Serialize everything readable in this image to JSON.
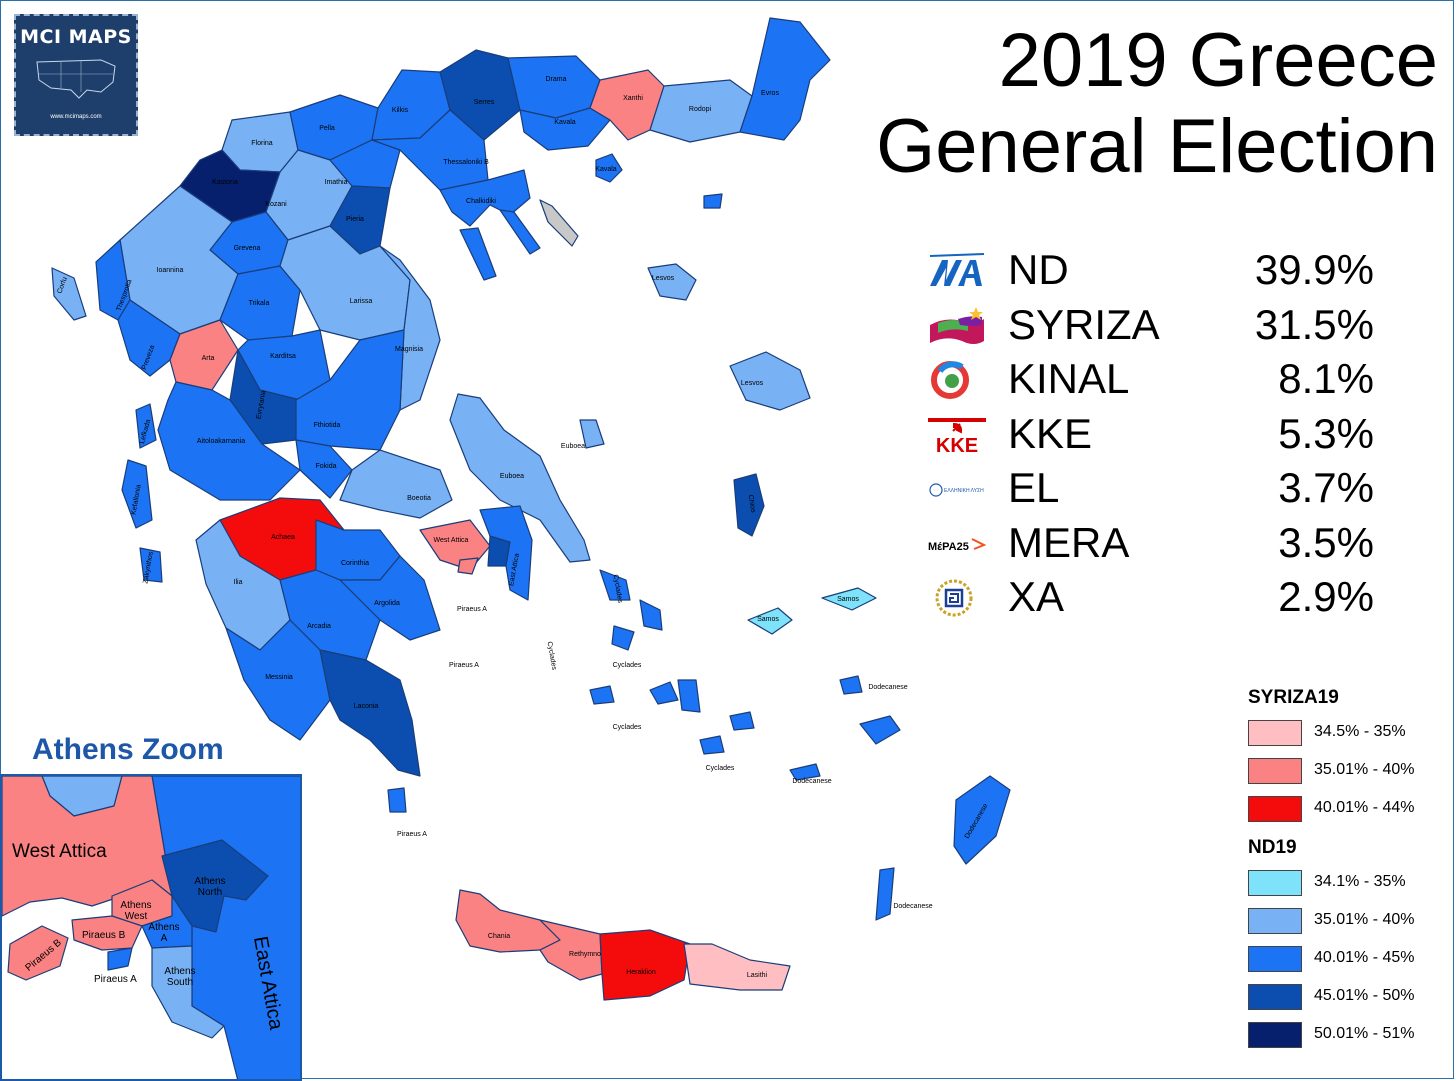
{
  "logo": {
    "title": "MCI MAPS",
    "url": "www.mcimaps.com"
  },
  "title": {
    "line1": "2019 Greece",
    "line2": "General Election"
  },
  "parties": [
    {
      "icon": "nd-logo-icon",
      "name": "ND",
      "pct": "39.9%"
    },
    {
      "icon": "syriza-flag-icon",
      "name": "SYRIZA",
      "pct": "31.5%"
    },
    {
      "icon": "kinal-logo-icon",
      "name": "KINAL",
      "pct": "8.1%"
    },
    {
      "icon": "kke-logo-icon",
      "name": "KKE",
      "pct": "5.3%"
    },
    {
      "icon": "el-logo-icon",
      "name": "EL",
      "pct": "3.7%"
    },
    {
      "icon": "mera-logo-icon",
      "name": "MERA",
      "pct": "3.5%"
    },
    {
      "icon": "xa-logo-icon",
      "name": "XA",
      "pct": "2.9%"
    }
  ],
  "party_logo_text": {
    "kke": "KKE",
    "el": "ΕΛΛΗΝΙΚΗ ΛΥΣΗ",
    "mera": "ΜέΡΑ25"
  },
  "legend": {
    "syriza": {
      "title": "SYRIZA19",
      "items": [
        {
          "label": "34.5% - 35%",
          "color": "#ffbec2"
        },
        {
          "label": "35.01% - 40%",
          "color": "#fa8282"
        },
        {
          "label": "40.01% - 44%",
          "color": "#f40c0c"
        }
      ]
    },
    "nd": {
      "title": "ND19",
      "items": [
        {
          "label": "34.1% - 35%",
          "color": "#7de2fa"
        },
        {
          "label": "35.01% - 40%",
          "color": "#78b2f4"
        },
        {
          "label": "40.01% - 45%",
          "color": "#1c74f4"
        },
        {
          "label": "45.01% - 50%",
          "color": "#0b4eb0"
        },
        {
          "label": "50.01% - 51%",
          "color": "#07206e"
        }
      ]
    }
  },
  "colors": {
    "no_data": "#c8c8c8",
    "border": "#1a3d7a",
    "accent": "#1c57a8"
  },
  "regions": [
    {
      "name": "Florina",
      "winner": "ND",
      "bracket": "40.01% - 45%"
    },
    {
      "name": "Pella",
      "winner": "ND",
      "bracket": "40.01% - 45%"
    },
    {
      "name": "Kilkis",
      "winner": "ND",
      "bracket": "40.01% - 45%"
    },
    {
      "name": "Serres",
      "winner": "ND",
      "bracket": "45.01% - 50%"
    },
    {
      "name": "Drama",
      "winner": "ND",
      "bracket": "40.01% - 45%"
    },
    {
      "name": "Kavala",
      "winner": "ND",
      "bracket": "40.01% - 45%"
    },
    {
      "name": "Xanthi",
      "winner": "SYRIZA",
      "bracket": "35.01% - 40%"
    },
    {
      "name": "Rodopi",
      "winner": "ND",
      "bracket": "35.01% - 40%"
    },
    {
      "name": "Evros",
      "winner": "ND",
      "bracket": "40.01% - 45%"
    },
    {
      "name": "Kastoria",
      "winner": "ND",
      "bracket": "50.01% - 51%"
    },
    {
      "name": "Kozani",
      "winner": "ND",
      "bracket": "35.01% - 40%"
    },
    {
      "name": "Imathia",
      "winner": "ND",
      "bracket": "40.01% - 45%"
    },
    {
      "name": "Thessaloniki B",
      "winner": "ND",
      "bracket": "40.01% - 45%"
    },
    {
      "name": "Chalkidiki",
      "winner": "ND",
      "bracket": "40.01% - 45%"
    },
    {
      "name": "Pieria",
      "winner": "ND",
      "bracket": "45.01% - 50%"
    },
    {
      "name": "Grevena",
      "winner": "ND",
      "bracket": "40.01% - 45%"
    },
    {
      "name": "Ioannina",
      "winner": "ND",
      "bracket": "35.01% - 40%"
    },
    {
      "name": "Corfu",
      "winner": "ND",
      "bracket": "35.01% - 40%"
    },
    {
      "name": "Thesprotia",
      "winner": "ND",
      "bracket": "40.01% - 45%"
    },
    {
      "name": "Preveza",
      "winner": "ND",
      "bracket": "40.01% - 45%"
    },
    {
      "name": "Arta",
      "winner": "SYRIZA",
      "bracket": "35.01% - 40%"
    },
    {
      "name": "Trikala",
      "winner": "ND",
      "bracket": "40.01% - 45%"
    },
    {
      "name": "Larissa",
      "winner": "ND",
      "bracket": "35.01% - 40%"
    },
    {
      "name": "Karditsa",
      "winner": "ND",
      "bracket": "40.01% - 45%"
    },
    {
      "name": "Magnisia",
      "winner": "ND",
      "bracket": "35.01% - 40%"
    },
    {
      "name": "Evrytania",
      "winner": "ND",
      "bracket": "45.01% - 50%"
    },
    {
      "name": "Lefkada",
      "winner": "ND",
      "bracket": "40.01% - 45%"
    },
    {
      "name": "Aitoloakarnania",
      "winner": "ND",
      "bracket": "40.01% - 45%"
    },
    {
      "name": "Fthiotida",
      "winner": "ND",
      "bracket": "40.01% - 45%"
    },
    {
      "name": "Fokida",
      "winner": "ND",
      "bracket": "40.01% - 45%"
    },
    {
      "name": "Boeotia",
      "winner": "ND",
      "bracket": "35.01% - 40%"
    },
    {
      "name": "Euboea",
      "winner": "ND",
      "bracket": "35.01% - 40%"
    },
    {
      "name": "Kefallonia",
      "winner": "ND",
      "bracket": "40.01% - 45%"
    },
    {
      "name": "Zakynthos",
      "winner": "ND",
      "bracket": "40.01% - 45%"
    },
    {
      "name": "Achaea",
      "winner": "SYRIZA",
      "bracket": "40.01% - 44%"
    },
    {
      "name": "Ilia",
      "winner": "ND",
      "bracket": "35.01% - 40%"
    },
    {
      "name": "Corinthia",
      "winner": "ND",
      "bracket": "40.01% - 45%"
    },
    {
      "name": "Argolida",
      "winner": "ND",
      "bracket": "40.01% - 45%"
    },
    {
      "name": "Arcadia",
      "winner": "ND",
      "bracket": "40.01% - 45%"
    },
    {
      "name": "Messinia",
      "winner": "ND",
      "bracket": "40.01% - 45%"
    },
    {
      "name": "Laconia",
      "winner": "ND",
      "bracket": "45.01% - 50%"
    },
    {
      "name": "West Attica",
      "winner": "SYRIZA",
      "bracket": "35.01% - 40%"
    },
    {
      "name": "East Attica",
      "winner": "ND",
      "bracket": "40.01% - 45%"
    },
    {
      "name": "Lesvos",
      "winner": "ND",
      "bracket": "35.01% - 40%"
    },
    {
      "name": "Chios",
      "winner": "ND",
      "bracket": "45.01% - 50%"
    },
    {
      "name": "Samos",
      "winner": "ND",
      "bracket": "34.1% - 35%"
    },
    {
      "name": "Cyclades",
      "winner": "ND",
      "bracket": "40.01% - 45%"
    },
    {
      "name": "Dodecanese",
      "winner": "ND",
      "bracket": "40.01% - 45%"
    },
    {
      "name": "Chania",
      "winner": "SYRIZA",
      "bracket": "35.01% - 40%"
    },
    {
      "name": "Rethymno",
      "winner": "SYRIZA",
      "bracket": "35.01% - 40%"
    },
    {
      "name": "Heraklion",
      "winner": "SYRIZA",
      "bracket": "40.01% - 44%"
    },
    {
      "name": "Lasithi",
      "winner": "SYRIZA",
      "bracket": "34.5% - 35%"
    }
  ],
  "map_labels": {
    "florina": "Florina",
    "pella": "Pella",
    "kilkis": "Kilkis",
    "serres": "Serres",
    "drama": "Drama",
    "kavala": "Kavala",
    "kavala_isl": "Kavala",
    "xanthi": "Xanthi",
    "rodopi": "Rodopi",
    "evros": "Evros",
    "kastoria": "Kastoria",
    "kozani": "Kozani",
    "imathia": "Imathia",
    "thessaloniki_b": "Thessaloniki B",
    "chalkidiki": "Chalkidiki",
    "pieria": "Pieria",
    "grevena": "Grevena",
    "ioannina": "Ioannina",
    "corfu": "Corfu",
    "thesprotia": "Thesprotia",
    "preveza": "Preveza",
    "arta": "Arta",
    "trikala": "Trikala",
    "larissa": "Larissa",
    "karditsa": "Karditsa",
    "magnisia": "Magnisia",
    "evrytania": "Evrytania",
    "lefkada": "Lefkada",
    "aitoloakarnania": "Aitoloakarnania",
    "fthiotida": "Fthiotida",
    "fokida": "Fokida",
    "boeotia": "Boeotia",
    "euboea": "Euboea",
    "euboea_n": "Euboea",
    "kefallonia": "Kefallonia",
    "zakynthos": "Zakynthos",
    "achaea": "Achaea",
    "ilia": "Ilia",
    "corinthia": "Corinthia",
    "argolida": "Argolida",
    "arcadia": "Arcadia",
    "messinia": "Messinia",
    "laconia": "Laconia",
    "west_attica": "West Attica",
    "east_attica": "East Attica",
    "piraeus_a1": "Piraeus A",
    "piraeus_a2": "Piraeus A",
    "piraeus_a3": "Piraeus A",
    "lesvos_n": "Lesvos",
    "lesvos": "Lesvos",
    "chios": "Chios",
    "samos1": "Samos",
    "samos2": "Samos",
    "cyclades_v": "Cyclades",
    "cyclades_v2": "Cyclades",
    "cyclades1": "Cyclades",
    "cyclades2": "Cyclades",
    "cyclades3": "Cyclades",
    "dodecanese1": "Dodecanese",
    "dodecanese2": "Dodecanese",
    "dodecanese3": "Dodecanese",
    "dodecanese_v": "Dodecanese",
    "chania": "Chania",
    "rethymno": "Rethymno",
    "heraklion": "Heraklion",
    "lasithi": "Lasithi"
  },
  "athens_zoom": {
    "title": "Athens Zoom",
    "labels": {
      "west_attica": "West Attica",
      "athens_north": "Athens North",
      "athens_west": "Athens West",
      "athens_a": "Athens A",
      "piraeus_b": "Piraeus B",
      "piraeus_b2": "Piraeus B",
      "piraeus_a": "Piraeus A",
      "athens_south": "Athens South",
      "east_attica": "East Attica"
    }
  }
}
